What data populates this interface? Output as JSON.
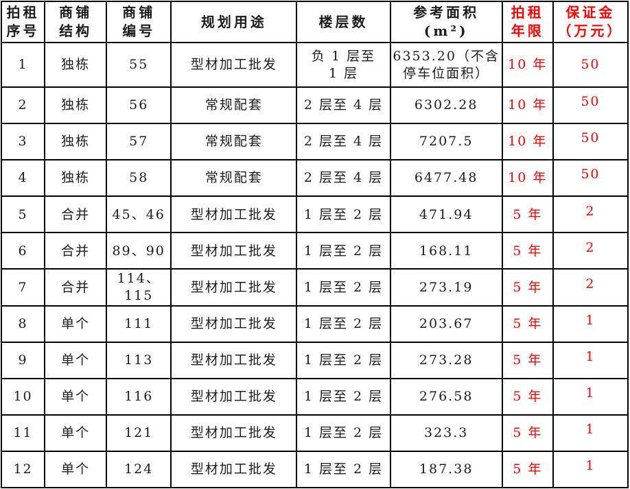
{
  "colors": {
    "accent_red": "#fe0000",
    "text": "#1c1c1c",
    "border": "#000000",
    "background": "#ffffff"
  },
  "table": {
    "columns": [
      {
        "id": "seq",
        "lines": [
          "拍租",
          "序号"
        ],
        "red": false
      },
      {
        "id": "structure",
        "lines": [
          "商铺",
          "结构"
        ],
        "red": false
      },
      {
        "id": "shop-no",
        "lines": [
          "商铺",
          "编号"
        ],
        "red": false
      },
      {
        "id": "usage",
        "lines": [
          "规划用途"
        ],
        "red": false
      },
      {
        "id": "floors",
        "lines": [
          "楼层数"
        ],
        "red": false
      },
      {
        "id": "area",
        "lines": [
          "参考面积",
          "(m²)"
        ],
        "red": false
      },
      {
        "id": "term",
        "lines": [
          "拍租",
          "年限"
        ],
        "red": true
      },
      {
        "id": "deposit",
        "lines": [
          "保证金",
          "（万元）"
        ],
        "red": true
      }
    ],
    "rows": [
      {
        "seq": "1",
        "structure": "独栋",
        "shop_no": "55",
        "usage": "型材加工批发",
        "floors": [
          "负 1 层至",
          "1 层"
        ],
        "area": [
          "6353.20（不含",
          "停车位面积）"
        ],
        "term": "10 年",
        "deposit": "50"
      },
      {
        "seq": "2",
        "structure": "独栋",
        "shop_no": "56",
        "usage": "常规配套",
        "floors": [
          "2 层至 4 层"
        ],
        "area": [
          "6302.28"
        ],
        "term": "10 年",
        "deposit": "50"
      },
      {
        "seq": "3",
        "structure": "独栋",
        "shop_no": "57",
        "usage": "常规配套",
        "floors": [
          "2 层至 4 层"
        ],
        "area": [
          "7207.5"
        ],
        "term": "10 年",
        "deposit": "50"
      },
      {
        "seq": "4",
        "structure": "独栋",
        "shop_no": "58",
        "usage": "常规配套",
        "floors": [
          "2 层至 4 层"
        ],
        "area": [
          "6477.48"
        ],
        "term": "10 年",
        "deposit": "50"
      },
      {
        "seq": "5",
        "structure": "合并",
        "shop_no": "45、46",
        "usage": "型材加工批发",
        "floors": [
          "1 层至 2 层"
        ],
        "area": [
          "471.94"
        ],
        "term": "5 年",
        "deposit": "2"
      },
      {
        "seq": "6",
        "structure": "合并",
        "shop_no": "89、90",
        "usage": "型材加工批发",
        "floors": [
          "1 层至 2 层"
        ],
        "area": [
          "168.11"
        ],
        "term": "5 年",
        "deposit": "2"
      },
      {
        "seq": "7",
        "structure": "合并",
        "shop_no": "114、115",
        "usage": "型材加工批发",
        "floors": [
          "1 层至 2 层"
        ],
        "area": [
          "273.19"
        ],
        "term": "5 年",
        "deposit": "2"
      },
      {
        "seq": "8",
        "structure": "单个",
        "shop_no": "111",
        "usage": "型材加工批发",
        "floors": [
          "1 层至 2 层"
        ],
        "area": [
          "203.67"
        ],
        "term": "5 年",
        "deposit": "1"
      },
      {
        "seq": "9",
        "structure": "单个",
        "shop_no": "113",
        "usage": "型材加工批发",
        "floors": [
          "1 层至 2 层"
        ],
        "area": [
          "273.28"
        ],
        "term": "5 年",
        "deposit": "1"
      },
      {
        "seq": "10",
        "structure": "单个",
        "shop_no": "116",
        "usage": "型材加工批发",
        "floors": [
          "1 层至 2 层"
        ],
        "area": [
          "276.58"
        ],
        "term": "5 年",
        "deposit": "1"
      },
      {
        "seq": "11",
        "structure": "单个",
        "shop_no": "121",
        "usage": "型材加工批发",
        "floors": [
          "1 层至 2 层"
        ],
        "area": [
          "323.3"
        ],
        "term": "5 年",
        "deposit": "1"
      },
      {
        "seq": "12",
        "structure": "单个",
        "shop_no": "124",
        "usage": "型材加工批发",
        "floors": [
          "1 层至 2 层"
        ],
        "area": [
          "187.38"
        ],
        "term": "5 年",
        "deposit": "1"
      }
    ]
  }
}
